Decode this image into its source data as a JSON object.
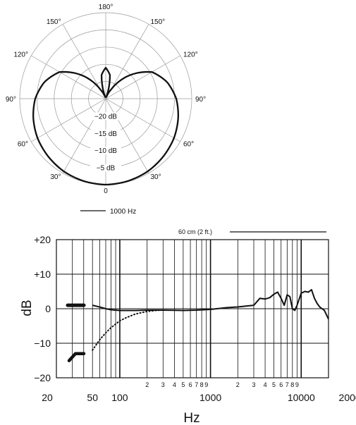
{
  "chart_data": [
    {
      "type": "polar",
      "angle_labels": [
        "180°",
        "150°",
        "150°",
        "120°",
        "120°",
        "90°",
        "90°",
        "60°",
        "60°",
        "30°",
        "30°",
        "0"
      ],
      "ring_labels": [
        "−20 dB",
        "−15 dB",
        "−10 dB",
        "−5 dB"
      ],
      "rlim_db": [
        -25,
        0
      ],
      "legend": [
        {
          "name": "1000 Hz",
          "style": "solid"
        }
      ],
      "series": [
        {
          "name": "1000 Hz",
          "angle_deg": [
            0,
            15,
            30,
            45,
            60,
            75,
            90,
            105,
            120,
            135,
            150,
            160,
            170,
            180
          ],
          "level_db": [
            0,
            -0.2,
            -0.6,
            -1.3,
            -2.1,
            -3.2,
            -4.5,
            -6.5,
            -9.5,
            -15.5,
            -22,
            -24.5,
            -18,
            -16
          ]
        }
      ]
    },
    {
      "type": "line",
      "xscale": "log",
      "xlim": [
        20,
        20000
      ],
      "ylim": [
        -20,
        20
      ],
      "xlabel": "Hz",
      "ylabel": "dB",
      "x_ticks_major": [
        "20",
        "50",
        "100",
        "1000",
        "10000",
        "20000"
      ],
      "x_ticks_minor": [
        "2",
        "3",
        "4",
        "5",
        "6",
        "7",
        "8",
        "9",
        "2",
        "3",
        "4",
        "5",
        "6",
        "7",
        "8",
        "9"
      ],
      "y_ticks": [
        "+20",
        "+10",
        "0",
        "−10",
        "−20"
      ],
      "annotation": "60 cm (2 ft.)",
      "switch_marks": {
        "flat_db": 1,
        "rolloff_db": -13
      },
      "series": [
        {
          "style": "solid",
          "x": [
            50,
            60,
            70,
            80,
            100,
            150,
            200,
            300,
            500,
            700,
            1000,
            1500,
            2000,
            3000,
            3500,
            4000,
            4500,
            5000,
            5500,
            6000,
            6500,
            7000,
            7500,
            8000,
            8500,
            9000,
            10000,
            11000,
            12000,
            13000,
            14000,
            15000,
            16000,
            17000,
            18000,
            20000
          ],
          "y": [
            1,
            0.5,
            0,
            -0.3,
            -0.5,
            -0.5,
            -0.4,
            -0.4,
            -0.5,
            -0.4,
            -0.2,
            0.3,
            0.5,
            1,
            3,
            2.8,
            3.2,
            4.2,
            4.8,
            3,
            1,
            4,
            3.5,
            0,
            -0.5,
            1,
            4.5,
            5,
            4.8,
            5.5,
            3,
            1.5,
            0.5,
            0,
            -0.5,
            -3
          ]
        },
        {
          "style": "dotted",
          "x": [
            50,
            60,
            70,
            80,
            100,
            120,
            150,
            200,
            250,
            300
          ],
          "y": [
            -12,
            -9,
            -7,
            -5.5,
            -3.5,
            -2.5,
            -1.5,
            -0.8,
            -0.5,
            -0.4
          ]
        }
      ]
    }
  ]
}
